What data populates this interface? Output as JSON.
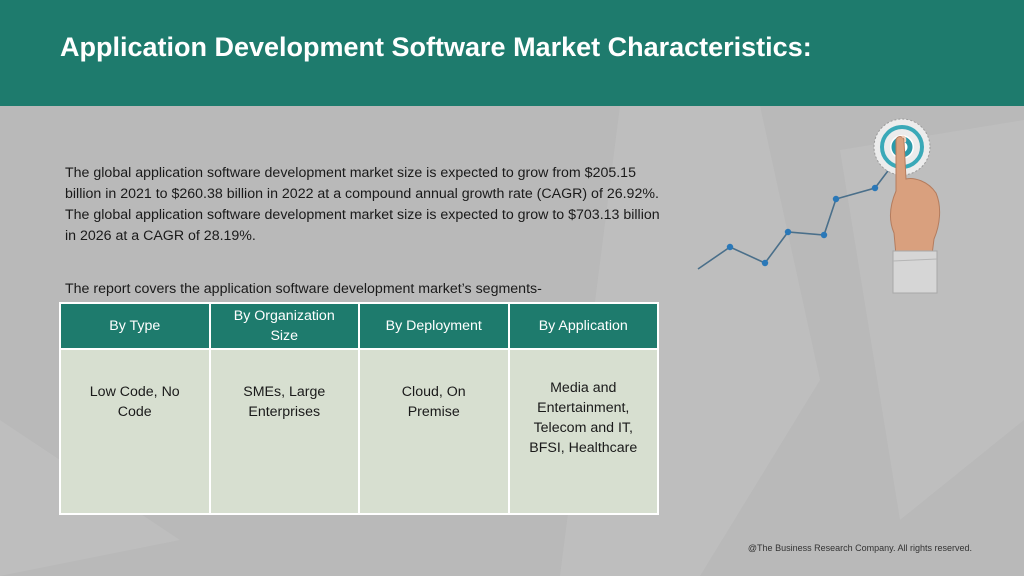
{
  "title": "Application Development Software Market Characteristics:",
  "paragraph": "The global application software development market size is expected to grow from $205.15 billion in 2021 to $260.38 billion in 2022 at a compound annual growth rate (CAGR) of 26.92%. The global application software development market size is expected to grow to $703.13 billion in 2026 at a CAGR of 28.19%.",
  "segments_intro": "The report covers the application software development market’s segments-",
  "table": {
    "headers": [
      "By Type",
      "By Organization Size",
      "By Deployment",
      "By Application"
    ],
    "cells": [
      "Low Code, No Code",
      "SMEs, Large Enterprises",
      "Cloud, On Premise",
      "Media and Entertainment, Telecom and IT, BFSI, Healthcare"
    ]
  },
  "footer": "@The Business Research Company. All rights reserved.",
  "colors": {
    "header": "#1e7b6d",
    "table_body": "#d7dfd0",
    "background": "#b9b9b9",
    "chart_line": "#4a6f8a",
    "chart_point": "#2a78b8"
  },
  "decoration": {
    "icon": "growth-chart-target-hand-icon"
  }
}
